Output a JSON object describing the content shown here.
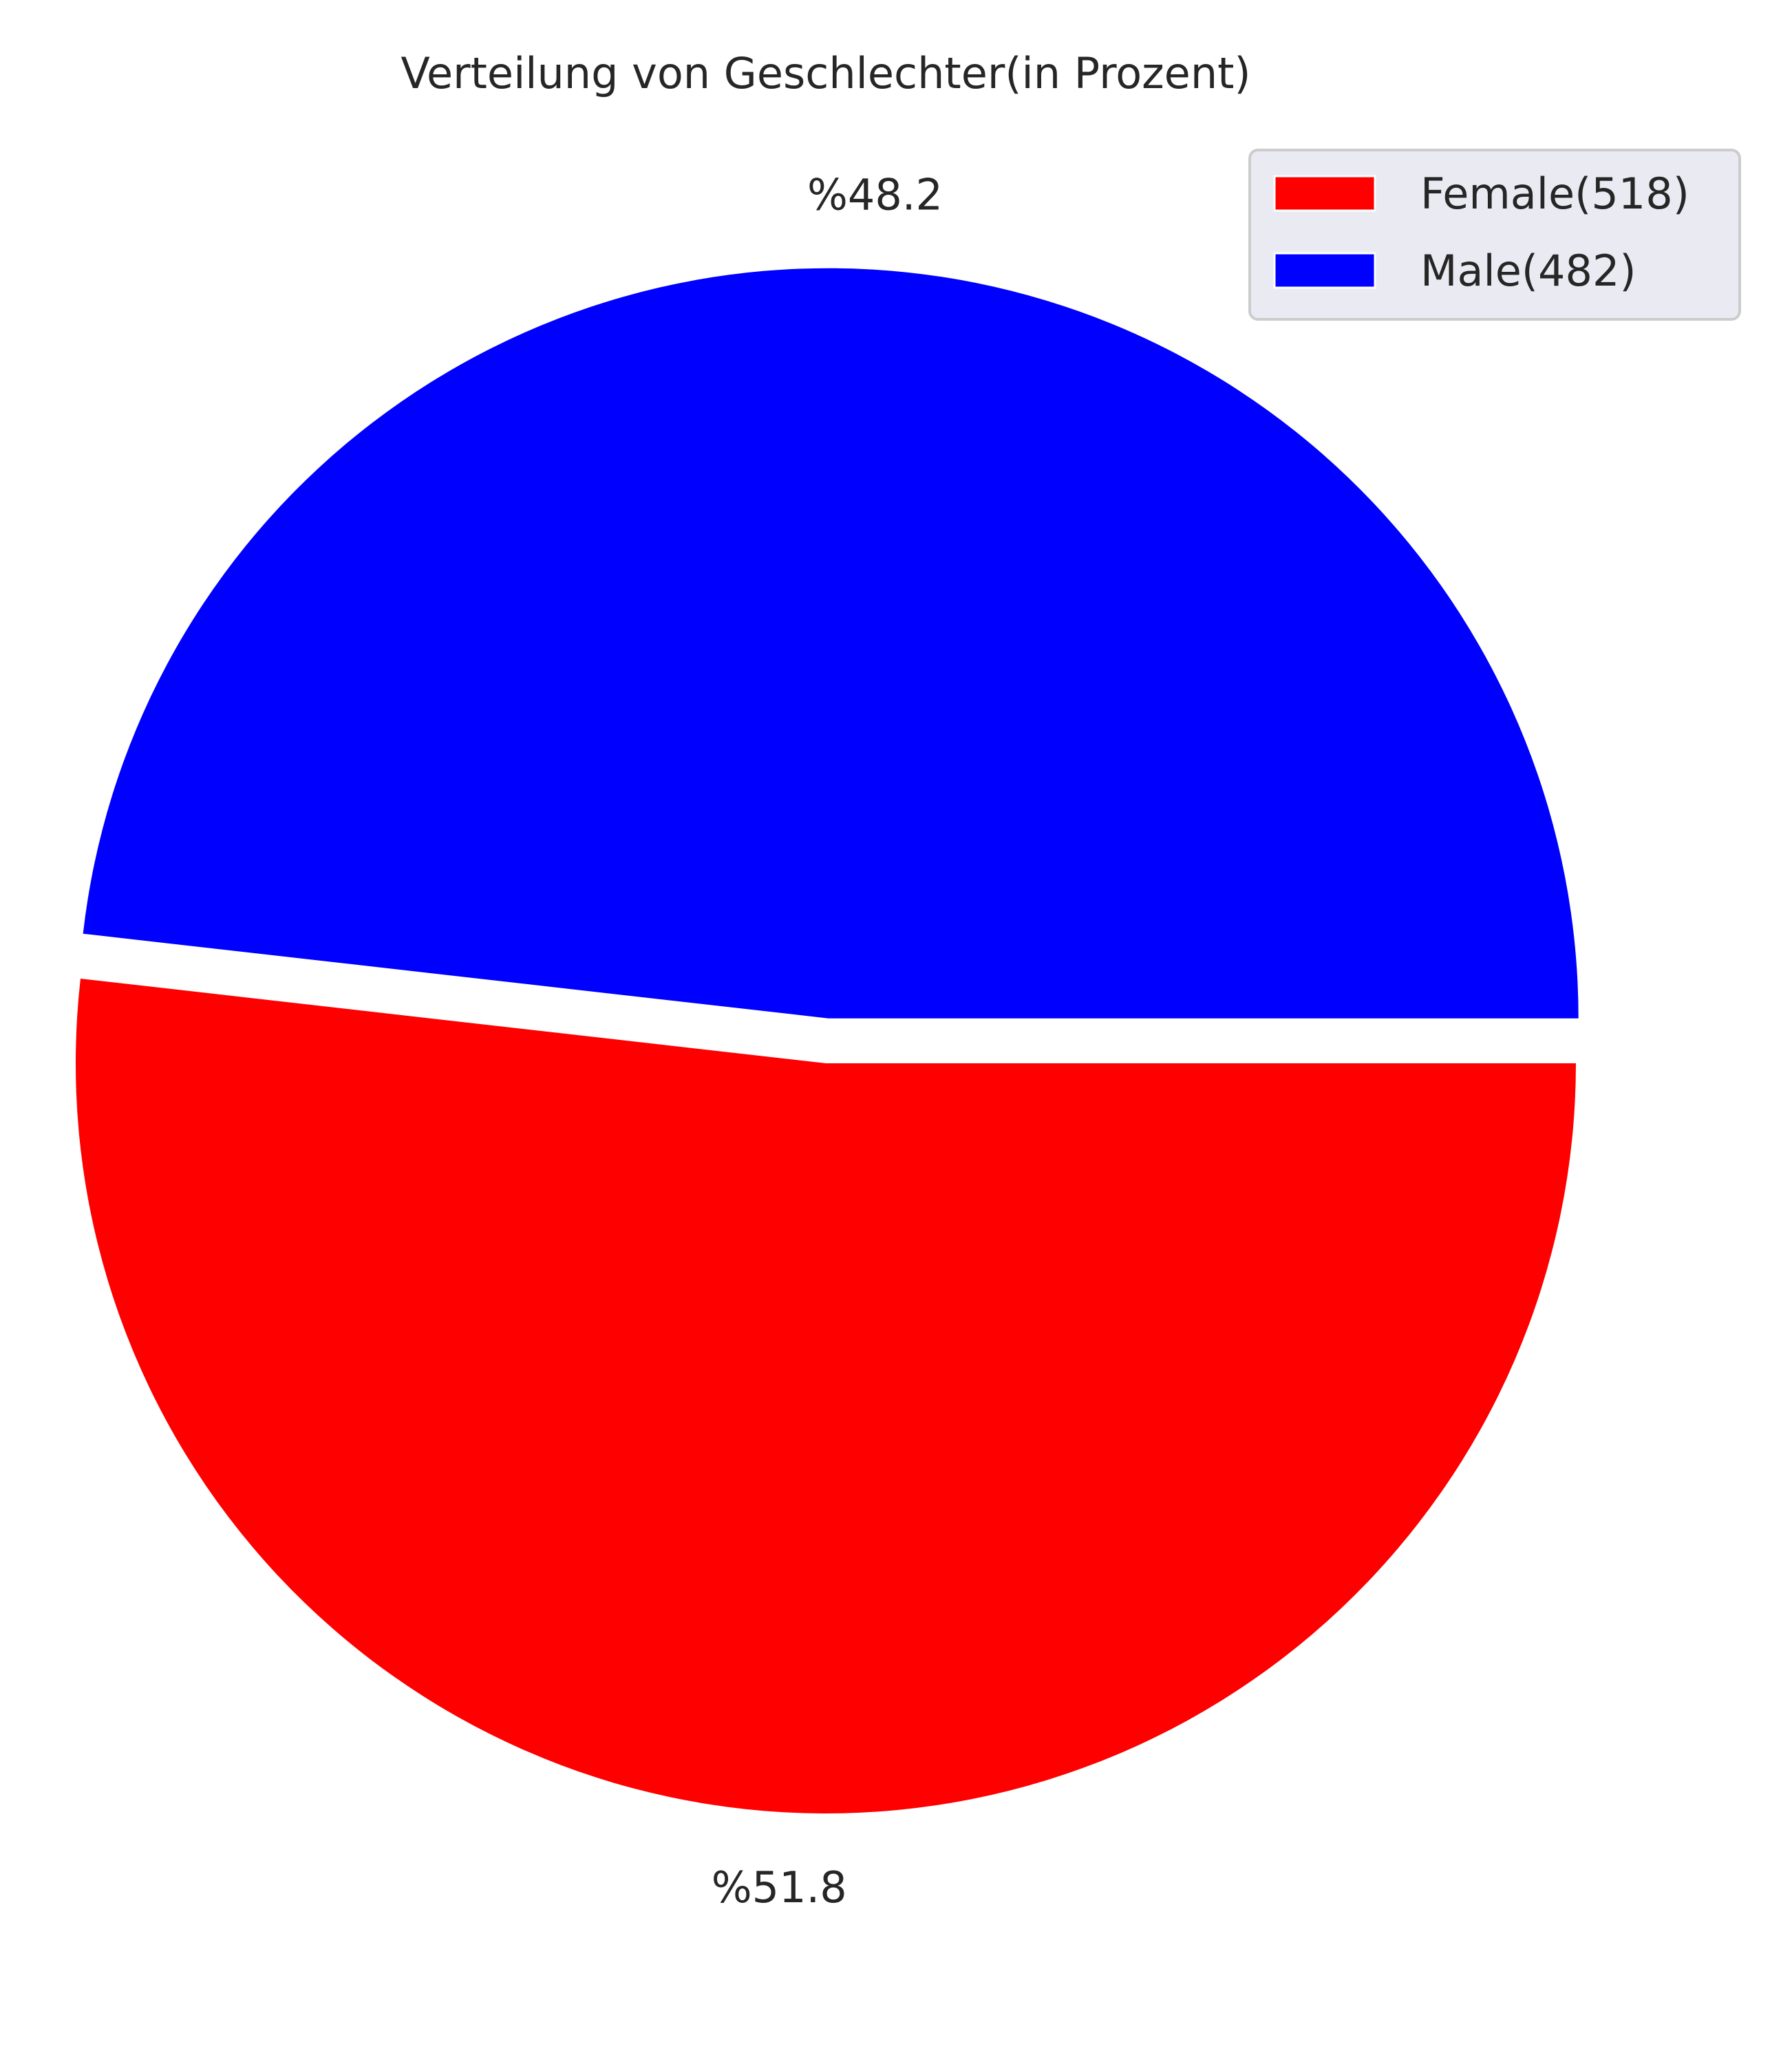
{
  "chart_data": {
    "type": "pie",
    "title": "Verteilung von Geschlechter(in Prozent)",
    "start_angle_deg": 0,
    "direction": "clockwise",
    "explode": [
      0,
      0.06
    ],
    "slices": [
      {
        "label": "Female(518)",
        "value": 518,
        "percent_label": "%51.8",
        "color": "#ff0000"
      },
      {
        "label": "Male(482)",
        "value": 482,
        "percent_label": "%48.2",
        "color": "#0000ff"
      }
    ],
    "legend": {
      "position": "top-right",
      "background": "#eaeaf2",
      "border": "#cccccc"
    }
  }
}
